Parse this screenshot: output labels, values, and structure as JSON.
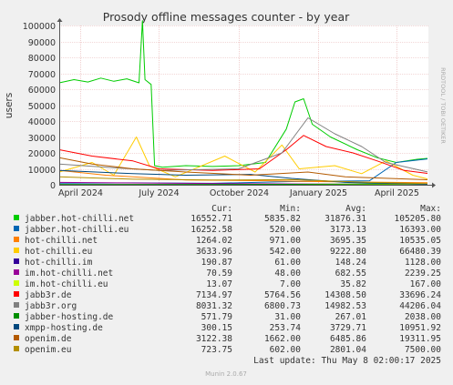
{
  "chart_data": {
    "type": "line",
    "title": "Prosody offline messages counter - by year",
    "ylabel": "users",
    "side_label": "RRDTOOL / TOBI OETIKER",
    "ylim": [
      0,
      100000
    ],
    "yticks": [
      0,
      10000,
      20000,
      30000,
      40000,
      50000,
      60000,
      70000,
      80000,
      90000,
      100000
    ],
    "ytick_labels": [
      "0",
      "10000",
      "20000",
      "30000",
      "40000",
      "50000",
      "60000",
      "70000",
      "80000",
      "90000",
      "100000"
    ],
    "xlim": [
      "2024-03-08",
      "2025-05-08"
    ],
    "xticks": [
      {
        "label": "April 2024",
        "date": "2024-04-01"
      },
      {
        "label": "July 2024",
        "date": "2024-07-01"
      },
      {
        "label": "October 2024",
        "date": "2024-10-01"
      },
      {
        "label": "January 2025",
        "date": "2025-01-01"
      },
      {
        "label": "April 2025",
        "date": "2025-04-01"
      }
    ],
    "grid": true,
    "legend_columns": [
      "Cur:",
      "Min:",
      "Avg:",
      "Max:"
    ],
    "series": [
      {
        "name": "jabber.hot-chilli.net",
        "color": "#00cc00",
        "cur": "16552.71",
        "min": "5835.82",
        "avg": "31876.31",
        "max": "105205.80",
        "points": [
          [
            "2024-03-08",
            64000
          ],
          [
            "2024-03-25",
            66000
          ],
          [
            "2024-04-10",
            64500
          ],
          [
            "2024-04-25",
            67000
          ],
          [
            "2024-05-10",
            65000
          ],
          [
            "2024-05-25",
            66500
          ],
          [
            "2024-06-08",
            64000
          ],
          [
            "2024-06-12",
            103000
          ],
          [
            "2024-06-15",
            66000
          ],
          [
            "2024-06-22",
            63000
          ],
          [
            "2024-06-26",
            12000
          ],
          [
            "2024-07-05",
            11000
          ],
          [
            "2024-08-01",
            12000
          ],
          [
            "2024-09-01",
            11500
          ],
          [
            "2024-10-01",
            12000
          ],
          [
            "2024-11-01",
            14000
          ],
          [
            "2024-11-25",
            35000
          ],
          [
            "2024-12-05",
            52000
          ],
          [
            "2024-12-15",
            54000
          ],
          [
            "2024-12-25",
            38000
          ],
          [
            "2025-01-15",
            30000
          ],
          [
            "2025-02-15",
            22000
          ],
          [
            "2025-03-10",
            17000
          ],
          [
            "2025-04-01",
            14000
          ],
          [
            "2025-04-25",
            16000
          ],
          [
            "2025-05-07",
            16552
          ]
        ]
      },
      {
        "name": "jabber.hot-chilli.eu",
        "color": "#0066b3",
        "cur": "16252.58",
        "min": "520.00",
        "avg": "3173.13",
        "max": "16393.00",
        "points": [
          [
            "2024-03-08",
            1000
          ],
          [
            "2024-06-01",
            1200
          ],
          [
            "2024-09-01",
            900
          ],
          [
            "2024-12-01",
            2000
          ],
          [
            "2025-03-01",
            2500
          ],
          [
            "2025-04-01",
            14000
          ],
          [
            "2025-05-07",
            16252
          ]
        ]
      },
      {
        "name": "hot-chilli.net",
        "color": "#ff8000",
        "cur": "1264.02",
        "min": "971.00",
        "avg": "3695.35",
        "max": "10535.05",
        "points": [
          [
            "2024-03-08",
            9000
          ],
          [
            "2024-05-01",
            6000
          ],
          [
            "2024-08-01",
            3000
          ],
          [
            "2024-11-01",
            2500
          ],
          [
            "2025-01-01",
            2000
          ],
          [
            "2025-05-07",
            1264
          ]
        ]
      },
      {
        "name": "hot-chilli.eu",
        "color": "#ffcc00",
        "cur": "3633.96",
        "min": "542.00",
        "avg": "9222.80",
        "max": "66480.39",
        "points": [
          [
            "2024-03-08",
            8000
          ],
          [
            "2024-04-15",
            14000
          ],
          [
            "2024-05-10",
            6000
          ],
          [
            "2024-06-05",
            30000
          ],
          [
            "2024-06-20",
            12000
          ],
          [
            "2024-07-20",
            5000
          ],
          [
            "2024-09-15",
            18000
          ],
          [
            "2024-10-20",
            8000
          ],
          [
            "2024-11-20",
            25000
          ],
          [
            "2024-12-10",
            10000
          ],
          [
            "2025-01-20",
            12000
          ],
          [
            "2025-02-20",
            7000
          ],
          [
            "2025-03-20",
            15000
          ],
          [
            "2025-04-20",
            6000
          ],
          [
            "2025-05-07",
            3634
          ]
        ]
      },
      {
        "name": "hot-chilli.im",
        "color": "#330099",
        "cur": "190.87",
        "min": "61.00",
        "avg": "148.24",
        "max": "1128.00",
        "points": [
          [
            "2024-03-08",
            200
          ],
          [
            "2024-09-01",
            150
          ],
          [
            "2025-05-07",
            191
          ]
        ]
      },
      {
        "name": "im.hot-chilli.net",
        "color": "#990099",
        "cur": "70.59",
        "min": "48.00",
        "avg": "682.55",
        "max": "2239.25",
        "points": [
          [
            "2024-03-08",
            1500
          ],
          [
            "2024-09-01",
            800
          ],
          [
            "2025-05-07",
            71
          ]
        ]
      },
      {
        "name": "im.hot-chilli.eu",
        "color": "#ccff00",
        "cur": "13.07",
        "min": "7.00",
        "avg": "35.82",
        "max": "167.00",
        "points": [
          [
            "2024-03-08",
            40
          ],
          [
            "2025-05-07",
            13
          ]
        ]
      },
      {
        "name": "jabb3r.de",
        "color": "#ff0000",
        "cur": "7134.97",
        "min": "5764.56",
        "avg": "14308.50",
        "max": "33696.24",
        "points": [
          [
            "2024-03-08",
            22000
          ],
          [
            "2024-04-15",
            18000
          ],
          [
            "2024-06-01",
            15000
          ],
          [
            "2024-07-01",
            10000
          ],
          [
            "2024-09-01",
            9000
          ],
          [
            "2024-10-25",
            10000
          ],
          [
            "2024-11-25",
            22000
          ],
          [
            "2024-12-15",
            31000
          ],
          [
            "2025-01-10",
            24000
          ],
          [
            "2025-02-10",
            20000
          ],
          [
            "2025-03-10",
            15000
          ],
          [
            "2025-04-10",
            9000
          ],
          [
            "2025-05-07",
            7135
          ]
        ]
      },
      {
        "name": "jabb3r.org",
        "color": "#808080",
        "cur": "8031.32",
        "min": "6800.73",
        "avg": "14982.53",
        "max": "44206.04",
        "points": [
          [
            "2024-03-08",
            13000
          ],
          [
            "2024-05-01",
            11000
          ],
          [
            "2024-07-01",
            9000
          ],
          [
            "2024-10-01",
            10000
          ],
          [
            "2024-11-20",
            20000
          ],
          [
            "2024-12-20",
            42000
          ],
          [
            "2025-01-20",
            32000
          ],
          [
            "2025-02-20",
            24000
          ],
          [
            "2025-03-20",
            14000
          ],
          [
            "2025-05-07",
            8031
          ]
        ]
      },
      {
        "name": "jabber-hosting.de",
        "color": "#008f00",
        "cur": "571.79",
        "min": "31.00",
        "avg": "267.01",
        "max": "2038.00",
        "points": [
          [
            "2024-03-08",
            100
          ],
          [
            "2024-12-01",
            300
          ],
          [
            "2025-05-07",
            572
          ]
        ]
      },
      {
        "name": "xmpp-hosting.de",
        "color": "#00487d",
        "cur": "300.15",
        "min": "253.74",
        "avg": "3729.71",
        "max": "10951.92",
        "points": [
          [
            "2024-03-08",
            9000
          ],
          [
            "2024-06-01",
            7000
          ],
          [
            "2024-08-01",
            6000
          ],
          [
            "2024-10-15",
            6500
          ],
          [
            "2024-12-01",
            4000
          ],
          [
            "2025-02-01",
            1500
          ],
          [
            "2025-05-07",
            300
          ]
        ]
      },
      {
        "name": "openim.de",
        "color": "#b35a00",
        "cur": "3122.38",
        "min": "1662.00",
        "avg": "6485.86",
        "max": "19311.95",
        "points": [
          [
            "2024-03-08",
            17000
          ],
          [
            "2024-04-15",
            13000
          ],
          [
            "2024-06-01",
            10000
          ],
          [
            "2024-08-01",
            8000
          ],
          [
            "2024-10-15",
            6000
          ],
          [
            "2024-12-20",
            8000
          ],
          [
            "2025-02-01",
            5000
          ],
          [
            "2025-05-07",
            3122
          ]
        ]
      },
      {
        "name": "openim.eu",
        "color": "#b38f00",
        "cur": "723.75",
        "min": "602.00",
        "avg": "2801.04",
        "max": "7500.00",
        "points": [
          [
            "2024-03-08",
            5000
          ],
          [
            "2024-06-01",
            3500
          ],
          [
            "2024-09-01",
            3000
          ],
          [
            "2024-12-01",
            3200
          ],
          [
            "2025-03-01",
            1500
          ],
          [
            "2025-05-07",
            724
          ]
        ]
      }
    ],
    "footer_update": "Last update: Thu May  8 02:00:17 2025",
    "footer_version": "Munin 2.0.67"
  }
}
